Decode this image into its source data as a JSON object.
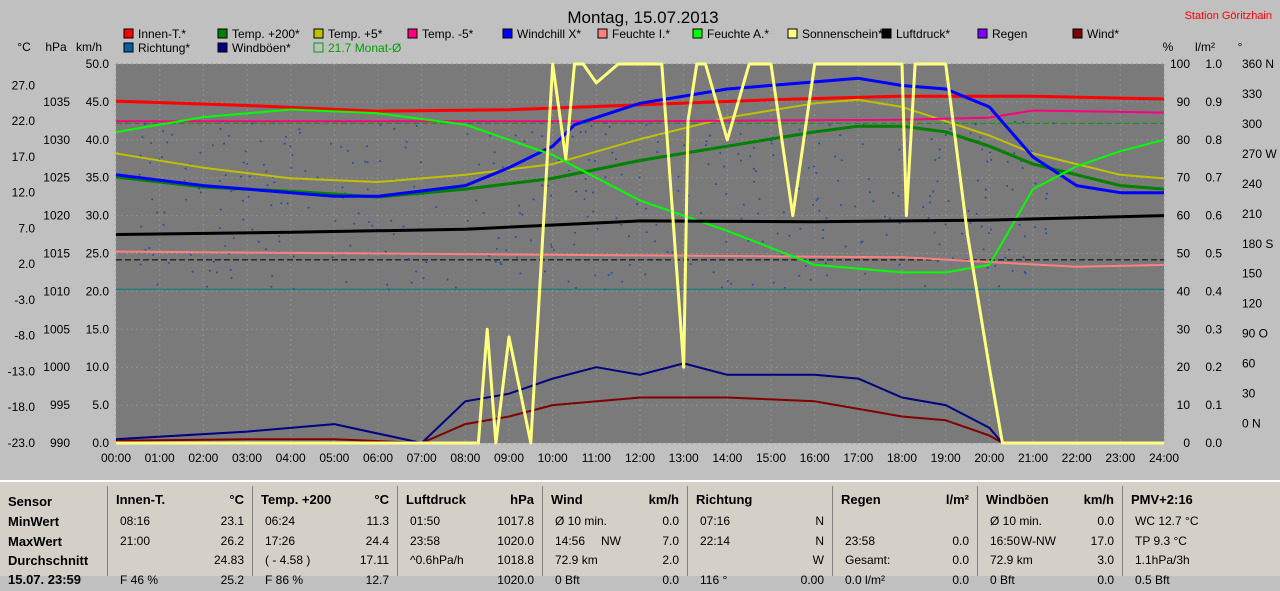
{
  "chart_data": {
    "type": "line",
    "title": "Montag, 15.07.2013",
    "station": "Station Göritzhain",
    "unit_labels": [
      "°C",
      "hPa",
      "km/h",
      "%",
      "l/m²",
      "°"
    ],
    "x_ticks": [
      "00:00",
      "01:00",
      "02:00",
      "03:00",
      "04:00",
      "05:00",
      "06:00",
      "07:00",
      "08:00",
      "09:00",
      "10:00",
      "11:00",
      "12:00",
      "13:00",
      "14:00",
      "15:00",
      "16:00",
      "17:00",
      "18:00",
      "19:00",
      "20:00",
      "21:00",
      "22:00",
      "23:00",
      "24:00"
    ],
    "temp_ticks": [
      "27.0",
      "22.0",
      "17.0",
      "12.0",
      "7.0",
      "2.0",
      "-3.0",
      "-8.0",
      "-13.0",
      "-18.0",
      "-23.0"
    ],
    "hpa_ticks": [
      "1035",
      "1030",
      "1025",
      "1020",
      "1015",
      "1010",
      "1005",
      "1000",
      "995",
      "990"
    ],
    "kmh_ticks": [
      "50.0",
      "45.0",
      "40.0",
      "35.0",
      "30.0",
      "25.0",
      "20.0",
      "15.0",
      "10.0",
      "5.0",
      "0.0"
    ],
    "pct_ticks": [
      "100",
      "90",
      "80",
      "70",
      "60",
      "50",
      "40",
      "30",
      "20",
      "10",
      "0"
    ],
    "rain_ticks": [
      "1.0",
      "0.9",
      "0.8",
      "0.7",
      "0.6",
      "0.5",
      "0.4",
      "0.3",
      "0.2",
      "0.1",
      "0.0"
    ],
    "deg_ticks": [
      "360 N",
      "330",
      "300",
      "270 W",
      "240",
      "210",
      "180 S",
      "150",
      "120",
      "90 O",
      "60",
      "30",
      "0 N"
    ],
    "legend": [
      {
        "name": "Innen-T.*",
        "color": "#ff0000"
      },
      {
        "name": "Temp. +200*",
        "color": "#008000"
      },
      {
        "name": "Temp. +5*",
        "color": "#c0c000"
      },
      {
        "name": "Temp. -5*",
        "color": "#ff0080"
      },
      {
        "name": "Windchill X*",
        "color": "#0000ff"
      },
      {
        "name": "Feuchte I.*",
        "color": "#ff8080"
      },
      {
        "name": "Feuchte A.*",
        "color": "#00ff00"
      },
      {
        "name": "Sonnenschein*",
        "color": "#ffff80"
      },
      {
        "name": "Luftdruck*",
        "color": "#000000"
      },
      {
        "name": "Regen",
        "color": "#8000ff"
      },
      {
        "name": "Wind*",
        "color": "#800000"
      },
      {
        "name": "Richtung*",
        "color": "#0060a0"
      },
      {
        "name": "Windböen*",
        "color": "#000080"
      },
      {
        "name": "21.7 Monat-Ø",
        "color": "#00a000"
      }
    ],
    "series": [
      {
        "name": "Innen-T.*",
        "color": "#ff0000",
        "unit": "°C",
        "x": [
          0,
          3,
          6,
          9,
          12,
          15,
          18,
          21,
          24
        ],
        "y": [
          24.8,
          24.2,
          23.4,
          23.6,
          24.3,
          25.0,
          25.5,
          25.5,
          25.1
        ]
      },
      {
        "name": "Temp. +200*",
        "color": "#008000",
        "unit": "°C",
        "x": [
          0,
          2,
          4,
          6,
          8,
          10,
          12,
          14,
          16,
          17,
          18,
          19,
          20,
          21,
          22,
          23,
          24
        ],
        "y": [
          14.2,
          12.8,
          12.2,
          11.4,
          12.5,
          14.0,
          16.5,
          18.5,
          20.5,
          21.3,
          21.3,
          20.5,
          18.5,
          16.0,
          14.5,
          13.0,
          12.5
        ]
      },
      {
        "name": "Temp. +5*",
        "color": "#c0c000",
        "unit": "°C",
        "x": [
          0,
          2,
          4,
          6,
          8,
          10,
          12,
          14,
          16,
          17,
          18,
          19,
          20,
          21,
          22,
          23,
          24
        ],
        "y": [
          17.5,
          15.5,
          14.0,
          13.5,
          14.5,
          16.0,
          19.5,
          22.5,
          24.5,
          25.0,
          24.0,
          22.0,
          20.0,
          17.5,
          16.0,
          14.5,
          14.0
        ]
      },
      {
        "name": "Temp. -5*",
        "color": "#ff0080",
        "unit": "°C",
        "x": [
          0,
          6,
          12,
          18,
          20,
          21,
          24
        ],
        "y": [
          22.0,
          22.0,
          22.0,
          22.2,
          22.5,
          23.5,
          23.2
        ]
      },
      {
        "name": "Windchill X*",
        "color": "#0000ff",
        "unit": "°C",
        "x": [
          0,
          2,
          4,
          5,
          6,
          8,
          9,
          10,
          10.5,
          11,
          12,
          14,
          16,
          17,
          18,
          19,
          20,
          21,
          22,
          23,
          24
        ],
        "y": [
          14.5,
          13.0,
          12.0,
          11.5,
          11.5,
          13.0,
          15.5,
          18.5,
          21.5,
          22.5,
          24.5,
          26.5,
          27.5,
          28.0,
          27.0,
          26.5,
          24.0,
          17.0,
          13.0,
          12.0,
          12.0
        ]
      },
      {
        "name": "Feuchte I.*",
        "color": "#ff8080",
        "unit": "%",
        "x": [
          0,
          6,
          12,
          18,
          22,
          24
        ],
        "y": [
          50.5,
          50.0,
          49.5,
          49.0,
          46.5,
          47.0
        ]
      },
      {
        "name": "Feuchte A.*",
        "color": "#00ff00",
        "unit": "%",
        "x": [
          0,
          2,
          4,
          6,
          8,
          9,
          10,
          11,
          12,
          14,
          16,
          18,
          19,
          20,
          20.5,
          21,
          22,
          23,
          24
        ],
        "y": [
          82,
          86,
          88,
          87,
          84,
          80,
          76,
          70,
          64,
          56,
          47,
          45,
          45,
          47,
          57,
          67,
          73,
          77,
          80
        ]
      },
      {
        "name": "Luftdruck*",
        "color": "#000000",
        "unit": "hPa",
        "x": [
          0,
          4,
          8,
          12,
          16,
          20,
          24
        ],
        "y": [
          1017.5,
          1017.8,
          1018.2,
          1019.3,
          1019.2,
          1019.4,
          1020.0
        ]
      },
      {
        "name": "Wind*",
        "color": "#800000",
        "unit": "km/h",
        "x": [
          0,
          3,
          5,
          7,
          8,
          9,
          10,
          12,
          14,
          16,
          17,
          18,
          19,
          20,
          20.3
        ],
        "y": [
          0.3,
          0.5,
          0.5,
          0.0,
          2.5,
          3.5,
          5.0,
          6.0,
          6.0,
          5.5,
          4.5,
          3.5,
          3.0,
          1.0,
          0.0
        ]
      },
      {
        "name": "Windböen*",
        "color": "#000080",
        "unit": "km/h",
        "x": [
          0,
          3,
          5,
          7,
          8,
          9,
          10,
          11,
          12,
          13,
          14,
          16,
          17,
          18,
          19,
          20,
          20.3
        ],
        "y": [
          0.5,
          1.5,
          2.5,
          0.0,
          5.5,
          6.5,
          8.5,
          10.0,
          9.0,
          10.5,
          9.0,
          9.0,
          8.5,
          6.0,
          5.0,
          2.0,
          0.0
        ]
      },
      {
        "name": "Sonnenschein*",
        "color": "#ffff80",
        "unit": "%",
        "x": [
          0,
          8.3,
          8.5,
          8.7,
          9,
          9.5,
          10,
          10.3,
          10.5,
          10.7,
          11,
          11.5,
          12,
          12.5,
          13,
          13.1,
          13.3,
          13.5,
          14,
          14.5,
          15,
          15.5,
          16,
          17,
          17.5,
          18,
          18.1,
          18.3,
          19,
          19.5,
          20,
          20.3,
          24
        ],
        "y": [
          0,
          0,
          30,
          0,
          28,
          0,
          100,
          75,
          100,
          100,
          95,
          100,
          100,
          100,
          20,
          85,
          100,
          100,
          80,
          100,
          100,
          60,
          100,
          100,
          100,
          100,
          60,
          100,
          100,
          55,
          20,
          0,
          0
        ]
      }
    ],
    "month_avg_temp": 21.7,
    "table": {
      "row_labels": [
        "Sensor",
        "MinWert",
        "MaxWert",
        "Durchschnitt",
        "15.07. 23:59"
      ],
      "columns": [
        {
          "title": "Innen-T.",
          "unit": "°C",
          "rows": [
            [
              "08:16",
              "",
              "23.1"
            ],
            [
              "21:00",
              "",
              "26.2"
            ],
            [
              "",
              "",
              "24.83"
            ],
            [
              "F 46 %",
              "",
              "25.2"
            ]
          ]
        },
        {
          "title": "Temp. +200",
          "unit": "°C",
          "rows": [
            [
              "06:24",
              "",
              "11.3"
            ],
            [
              "17:26",
              "",
              "24.4"
            ],
            [
              "( - 4.58 )",
              "",
              "17.11"
            ],
            [
              "F 86 %",
              "",
              "12.7"
            ]
          ]
        },
        {
          "title": "Luftdruck",
          "unit": "hPa",
          "rows": [
            [
              "01:50",
              "",
              "1017.8"
            ],
            [
              "23:58",
              "",
              "1020.0"
            ],
            [
              "^0.6hPa/h",
              "",
              "1018.8"
            ],
            [
              "",
              "",
              "1020.0"
            ]
          ]
        },
        {
          "title": "Wind",
          "unit": "km/h",
          "rows": [
            [
              "Ø 10 min.",
              "",
              "0.0"
            ],
            [
              "14:56",
              "NW",
              "7.0"
            ],
            [
              "72.9 km",
              "",
              "2.0"
            ],
            [
              "0 Bft",
              "",
              "0.0"
            ]
          ]
        },
        {
          "title": "Richtung",
          "unit": "",
          "rows": [
            [
              "07:16",
              "",
              "N"
            ],
            [
              "22:14",
              "",
              "N"
            ],
            [
              "",
              "",
              "W"
            ],
            [
              "116 °",
              "",
              "0.00"
            ]
          ]
        },
        {
          "title": "Regen",
          "unit": "l/m²",
          "rows": [
            [
              "",
              "",
              ""
            ],
            [
              "23:58",
              "",
              "0.0"
            ],
            [
              "Gesamt:",
              "",
              "0.0"
            ],
            [
              "0.0 l/m²",
              "",
              "0.0"
            ]
          ]
        },
        {
          "title": "Windböen",
          "unit": "km/h",
          "rows": [
            [
              "Ø 10 min.",
              "",
              "0.0"
            ],
            [
              "16:50",
              "W-NW",
              "17.0"
            ],
            [
              "72.9 km",
              "",
              "3.0"
            ],
            [
              "0 Bft",
              "",
              "0.0"
            ]
          ]
        },
        {
          "title": "PMV+2:16",
          "unit": "",
          "rows": [
            [
              "WC 12.7 °C",
              "",
              ""
            ],
            [
              "TP 9.3 °C",
              "",
              ""
            ],
            [
              "1.1hPa/3h",
              "",
              ""
            ],
            [
              "0.5 Bft",
              "",
              ""
            ]
          ]
        }
      ]
    }
  }
}
